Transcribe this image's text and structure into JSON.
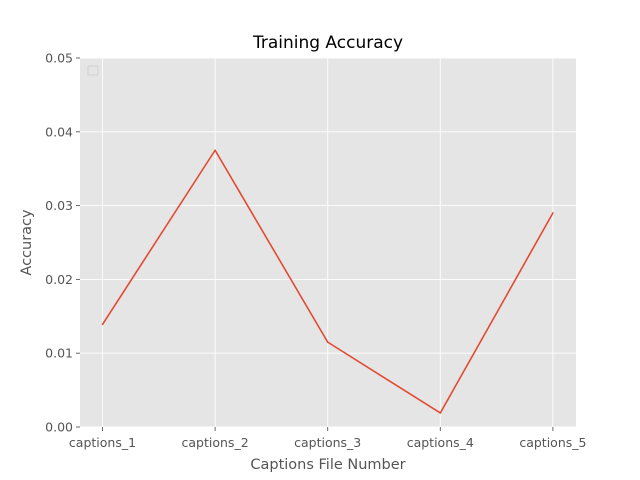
{
  "chart_data": {
    "type": "line",
    "title": "Training Accuracy",
    "xlabel": "Captions File Number",
    "ylabel": "Accuracy",
    "categories": [
      "captions_1",
      "captions_2",
      "captions_3",
      "captions_4",
      "captions_5"
    ],
    "series": [
      {
        "values": [
          0.0139,
          0.0375,
          0.0115,
          0.0019,
          0.029
        ],
        "color": "#e24a33"
      }
    ],
    "ylim": [
      0,
      0.05
    ],
    "yticks": [
      0,
      0.01,
      0.02,
      0.03,
      0.04,
      0.05
    ],
    "ytick_labels": [
      "0.00",
      "0.01",
      "0.02",
      "0.03",
      "0.04",
      "0.05"
    ],
    "grid": true,
    "legend": "top-left",
    "style": {
      "plot_bg": "#e5e5e5",
      "grid_color": "#ffffff"
    }
  }
}
